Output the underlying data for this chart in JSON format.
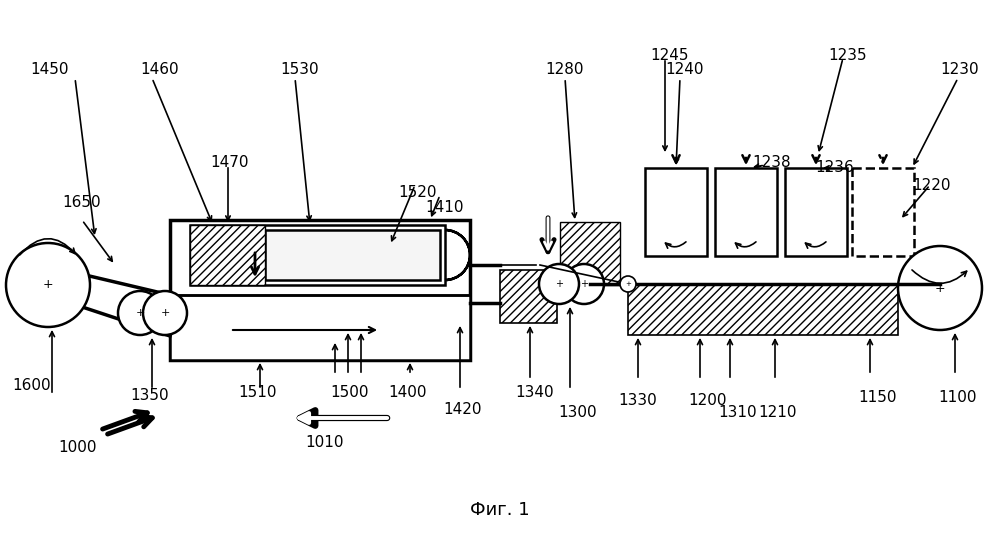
{
  "title": "Фиг. 1",
  "background": "#ffffff",
  "fig_width": 9.99,
  "fig_height": 5.34
}
